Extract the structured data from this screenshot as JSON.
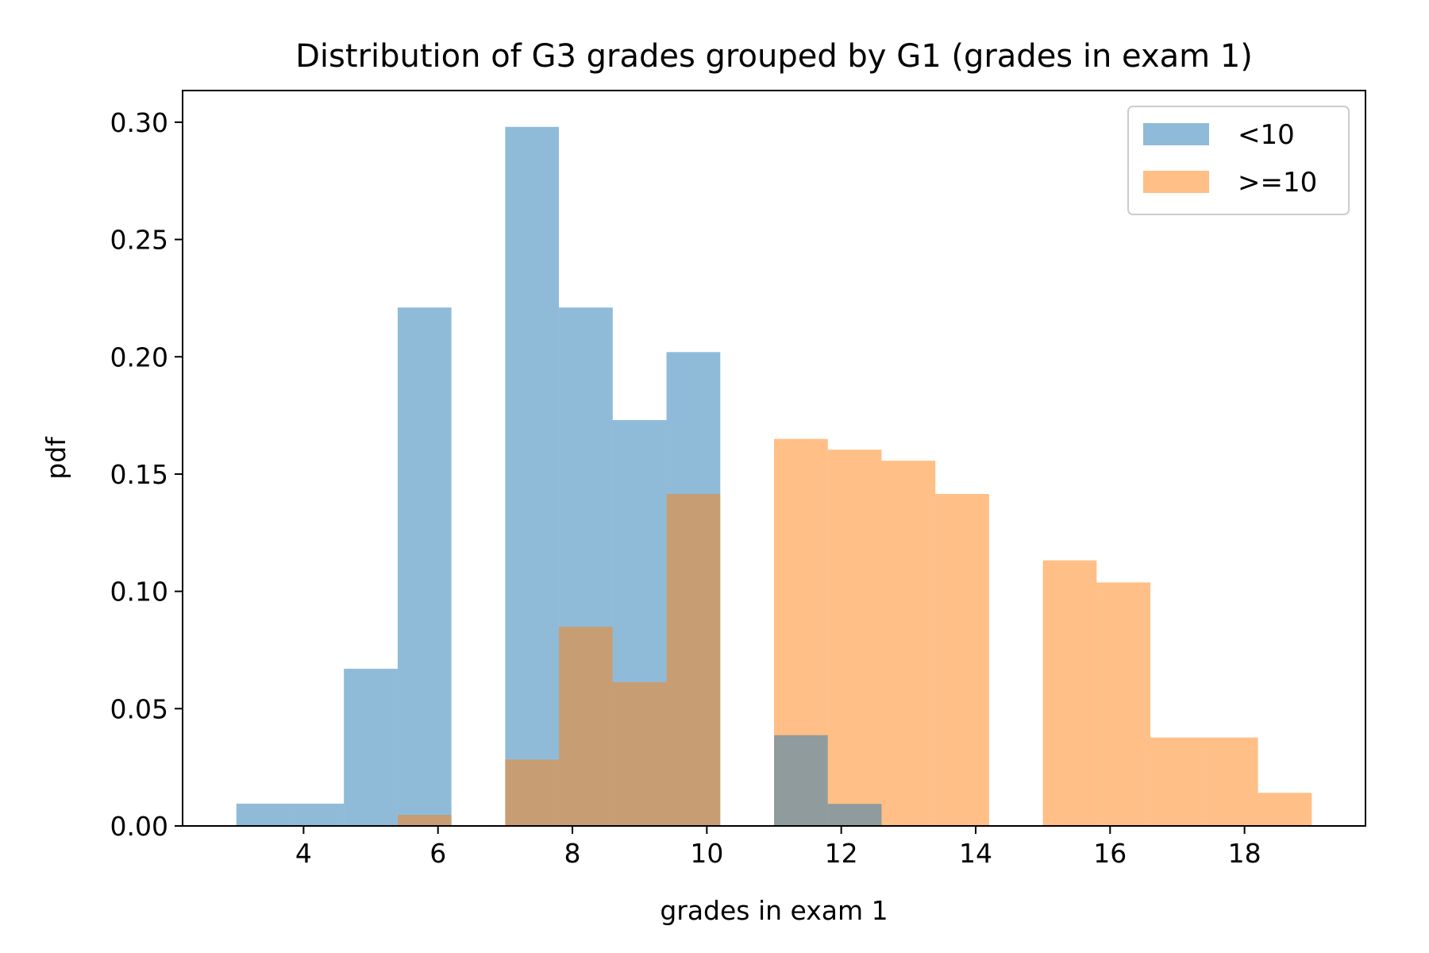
{
  "chart_data": {
    "type": "bar",
    "title": "Distribution of G3 grades grouped by G1 (grades in exam 1)",
    "xlabel": "grades in exam 1",
    "ylabel": "pdf",
    "xlim": [
      2.2,
      19.8
    ],
    "ylim": [
      0,
      0.3135
    ],
    "x_ticks": [
      4,
      6,
      8,
      10,
      12,
      14,
      16,
      18
    ],
    "y_ticks": [
      "0.00",
      "0.05",
      "0.10",
      "0.15",
      "0.20",
      "0.25",
      "0.30"
    ],
    "grid": false,
    "legend_position": "top-right",
    "series": [
      {
        "name": "<10",
        "color": "#1f77b4",
        "opacity": 0.5,
        "bins": [
          {
            "x0": 3.0,
            "x1": 3.8,
            "value": 0.0095
          },
          {
            "x0": 3.8,
            "x1": 4.6,
            "value": 0.0095
          },
          {
            "x0": 4.6,
            "x1": 5.4,
            "value": 0.067
          },
          {
            "x0": 5.4,
            "x1": 6.2,
            "value": 0.221
          },
          {
            "x0": 6.2,
            "x1": 7.0,
            "value": 0.0
          },
          {
            "x0": 7.0,
            "x1": 7.8,
            "value": 0.298
          },
          {
            "x0": 7.8,
            "x1": 8.6,
            "value": 0.221
          },
          {
            "x0": 8.6,
            "x1": 9.4,
            "value": 0.173
          },
          {
            "x0": 9.4,
            "x1": 10.2,
            "value": 0.202
          }
        ]
      },
      {
        "name": ">=10",
        "color": "#ff7f0e",
        "opacity": 0.5,
        "bins": [
          {
            "x0": 5.4,
            "x1": 6.2,
            "value": 0.0047
          },
          {
            "x0": 6.2,
            "x1": 7.0,
            "value": 0.0
          },
          {
            "x0": 7.0,
            "x1": 7.8,
            "value": 0.0283
          },
          {
            "x0": 7.8,
            "x1": 8.6,
            "value": 0.0849
          },
          {
            "x0": 8.6,
            "x1": 9.4,
            "value": 0.0613
          },
          {
            "x0": 9.4,
            "x1": 10.2,
            "value": 0.1415
          },
          {
            "x0": 10.2,
            "x1": 11.0,
            "value": 0.0
          },
          {
            "x0": 11.0,
            "x1": 11.8,
            "value": 0.165
          },
          {
            "x0": 11.8,
            "x1": 12.6,
            "value": 0.1604
          },
          {
            "x0": 12.6,
            "x1": 13.4,
            "value": 0.1557
          },
          {
            "x0": 13.4,
            "x1": 14.2,
            "value": 0.1415
          },
          {
            "x0": 14.2,
            "x1": 15.0,
            "value": 0.0
          },
          {
            "x0": 15.0,
            "x1": 15.8,
            "value": 0.1132
          },
          {
            "x0": 15.8,
            "x1": 16.6,
            "value": 0.1038
          },
          {
            "x0": 16.6,
            "x1": 17.4,
            "value": 0.0377
          },
          {
            "x0": 17.4,
            "x1": 18.2,
            "value": 0.0377
          },
          {
            "x0": 18.2,
            "x1": 19.0,
            "value": 0.0141
          }
        ]
      }
    ],
    "overlap_bins": [
      {
        "x0": 11.0,
        "x1": 11.8,
        "value": 0.0387
      },
      {
        "x0": 11.8,
        "x1": 12.6,
        "value": 0.0094
      }
    ]
  }
}
